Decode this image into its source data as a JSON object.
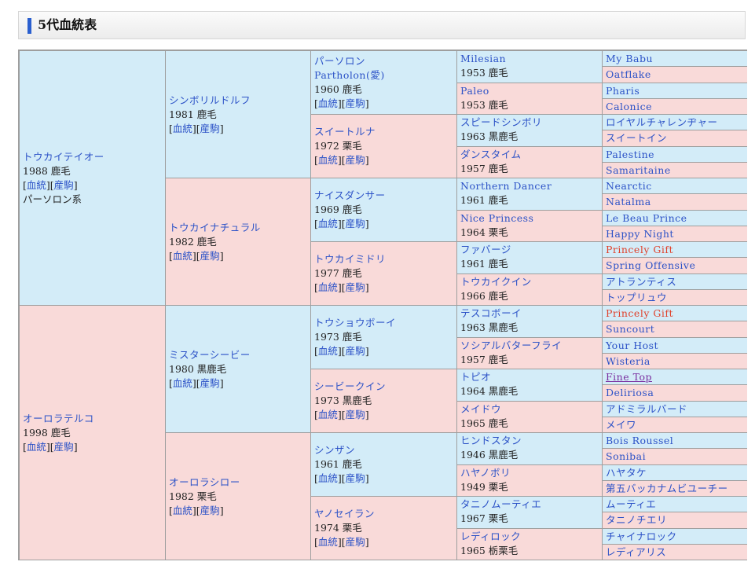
{
  "section_title": "5代血統表",
  "links": {
    "bloodline": "血統",
    "offspring": "産駒"
  },
  "pedigree": {
    "g1": [
      {
        "name": "トウカイテイオー",
        "info": "1988 鹿毛",
        "line": "パーソロン系",
        "sex": "m"
      },
      {
        "name": "オーロラテルコ",
        "info": "1998 鹿毛",
        "sex": "f"
      }
    ],
    "g2": [
      {
        "name": "シンボリルドルフ",
        "info": "1981 鹿毛",
        "sex": "m"
      },
      {
        "name": "トウカイナチュラル",
        "info": "1982 鹿毛",
        "sex": "f"
      },
      {
        "name": "ミスターシービー",
        "info": "1980 黒鹿毛",
        "sex": "m"
      },
      {
        "name": "オーロラシロー",
        "info": "1982 栗毛",
        "sex": "f"
      }
    ],
    "g3": [
      {
        "name": "パーソロン",
        "alt": "Partholon(愛)",
        "info": "1960 鹿毛",
        "sex": "m"
      },
      {
        "name": "スイートルナ",
        "info": "1972 栗毛",
        "sex": "f"
      },
      {
        "name": "ナイスダンサー",
        "info": "1969 鹿毛",
        "sex": "m"
      },
      {
        "name": "トウカイミドリ",
        "info": "1977 鹿毛",
        "sex": "f"
      },
      {
        "name": "トウショウボーイ",
        "info": "1973 鹿毛",
        "sex": "m"
      },
      {
        "name": "シービークイン",
        "info": "1973 黒鹿毛",
        "sex": "f"
      },
      {
        "name": "シンザン",
        "info": "1961 鹿毛",
        "sex": "m"
      },
      {
        "name": "ヤノセイラン",
        "info": "1974 栗毛",
        "sex": "f"
      }
    ],
    "g4": [
      {
        "name": "Milesian",
        "info": "1953 鹿毛",
        "sex": "m"
      },
      {
        "name": "Paleo",
        "info": "1953 鹿毛",
        "sex": "f"
      },
      {
        "name": "スピードシンボリ",
        "info": "1963 黒鹿毛",
        "sex": "m"
      },
      {
        "name": "ダンスタイム",
        "info": "1957 鹿毛",
        "sex": "f"
      },
      {
        "name": "Northern Dancer",
        "info": "1961 鹿毛",
        "sex": "m"
      },
      {
        "name": "Nice Princess",
        "info": "1964 栗毛",
        "sex": "f"
      },
      {
        "name": "ファバージ",
        "info": "1961 鹿毛",
        "sex": "m"
      },
      {
        "name": "トウカイクイン",
        "info": "1966 鹿毛",
        "sex": "f"
      },
      {
        "name": "テスコボーイ",
        "info": "1963 黒鹿毛",
        "sex": "m"
      },
      {
        "name": "ソシアルバターフライ",
        "info": "1957 鹿毛",
        "sex": "f"
      },
      {
        "name": "トピオ",
        "info": "1964 黒鹿毛",
        "sex": "m"
      },
      {
        "name": "メイドウ",
        "info": "1965 鹿毛",
        "sex": "f"
      },
      {
        "name": "ヒンドスタン",
        "info": "1946 黒鹿毛",
        "sex": "m"
      },
      {
        "name": "ハヤノボリ",
        "info": "1949 栗毛",
        "sex": "f"
      },
      {
        "name": "タニノムーティエ",
        "info": "1967 栗毛",
        "sex": "m"
      },
      {
        "name": "レディロック",
        "info": "1965 栃栗毛",
        "sex": "f"
      }
    ],
    "g5": [
      {
        "name": "My Babu",
        "sex": "m"
      },
      {
        "name": "Oatflake",
        "sex": "f"
      },
      {
        "name": "Pharis",
        "sex": "m"
      },
      {
        "name": "Calonice",
        "sex": "f"
      },
      {
        "name": "ロイヤルチャレンヂャー",
        "sex": "m"
      },
      {
        "name": "スイートイン",
        "sex": "f"
      },
      {
        "name": "Palestine",
        "sex": "m"
      },
      {
        "name": "Samaritaine",
        "sex": "f"
      },
      {
        "name": "Nearctic",
        "sex": "m"
      },
      {
        "name": "Natalma",
        "sex": "f"
      },
      {
        "name": "Le Beau Prince",
        "sex": "m"
      },
      {
        "name": "Happy Night",
        "sex": "f"
      },
      {
        "name": "Princely Gift",
        "sex": "m",
        "inbreed": true
      },
      {
        "name": "Spring Offensive",
        "sex": "f"
      },
      {
        "name": "アトランティス",
        "sex": "m"
      },
      {
        "name": "トップリュウ",
        "sex": "f"
      },
      {
        "name": "Princely Gift",
        "sex": "m",
        "inbreed": true
      },
      {
        "name": "Suncourt",
        "sex": "f"
      },
      {
        "name": "Your Host",
        "sex": "m"
      },
      {
        "name": "Wisteria",
        "sex": "f"
      },
      {
        "name": "Fine Top",
        "sex": "m",
        "visited": true
      },
      {
        "name": "Deliriosa",
        "sex": "f"
      },
      {
        "name": "アドミラルバード",
        "sex": "m"
      },
      {
        "name": "メイワ",
        "sex": "f"
      },
      {
        "name": "Bois Roussel",
        "sex": "m"
      },
      {
        "name": "Sonibai",
        "sex": "f"
      },
      {
        "name": "ハヤタケ",
        "sex": "m"
      },
      {
        "name": "第五バッカナムビユーチー",
        "sex": "f"
      },
      {
        "name": "ムーティエ",
        "sex": "m"
      },
      {
        "name": "タニノチエリ",
        "sex": "f"
      },
      {
        "name": "チャイナロック",
        "sex": "m"
      },
      {
        "name": "レディアリス",
        "sex": "f"
      }
    ]
  },
  "colors": {
    "male_bg": "#d3ecf8",
    "female_bg": "#f9dad9",
    "link": "#2c52c7",
    "inbreed": "#e0402a",
    "visited": "#7a2fa0",
    "accent_bar": "#2a5fcf"
  }
}
